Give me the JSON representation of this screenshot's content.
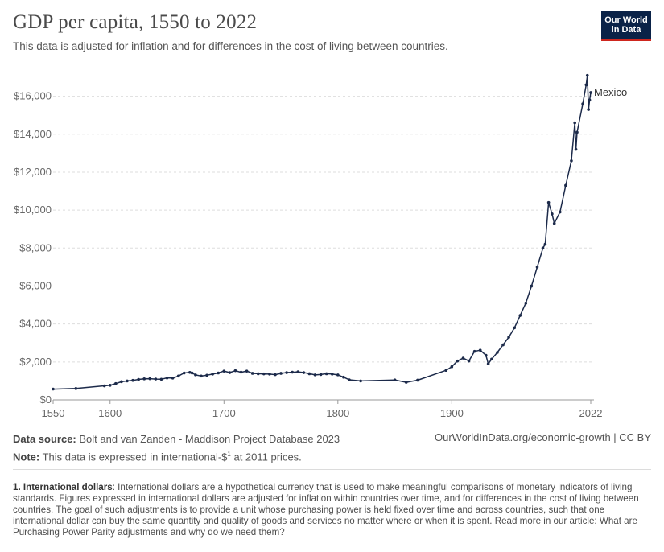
{
  "header": {
    "title": "GDP per capita, 1550 to 2022",
    "subtitle": "This data is adjusted for inflation and for differences in the cost of living between countries.",
    "logo_line1": "Our World",
    "logo_line2": "in Data"
  },
  "footer": {
    "source_label": "Data source:",
    "source_text": "Bolt and van Zanden - Maddison Project Database 2023",
    "note_label": "Note:",
    "note_text_pre": "This data is expressed in international-$",
    "note_sup": "1",
    "note_text_post": " at 2011 prices.",
    "url": "OurWorldInData.org/economic-growth | CC BY"
  },
  "footnote": {
    "label": "1. International dollars",
    "text": ": International dollars are a hypothetical currency that is used to make meaningful comparisons of monetary indicators of living standards. Figures expressed in international dollars are adjusted for inflation within countries over time, and for differences in the cost of living between countries. The goal of such adjustments is to provide a unit whose purchasing power is held fixed over time and across countries, such that one international dollar can buy the same quantity and quality of goods and services no matter where or when it is spent. Read more in our article: What are Purchasing Power Parity adjustments and why do we need them?"
  },
  "colors": {
    "line": "#1c2a4a",
    "grid": "#dddddd",
    "axis": "#666666"
  },
  "chart_data": {
    "type": "line",
    "title": "GDP per capita, 1550 to 2022",
    "xlim": [
      1550,
      2022
    ],
    "ylim": [
      0,
      17000
    ],
    "x_ticks": [
      1550,
      1600,
      1700,
      1800,
      1900,
      2022
    ],
    "x_tick_labels": [
      "1550",
      "1600",
      "1700",
      "1800",
      "1900",
      "2022"
    ],
    "y_ticks": [
      0,
      2000,
      4000,
      6000,
      8000,
      10000,
      12000,
      14000,
      16000
    ],
    "y_tick_labels": [
      "$0",
      "$2,000",
      "$4,000",
      "$6,000",
      "$8,000",
      "$10,000",
      "$12,000",
      "$14,000",
      "$16,000"
    ],
    "grid": true,
    "legend": "inline-right",
    "series": [
      {
        "name": "Mexico",
        "x": [
          1550,
          1570,
          1595,
          1600,
          1605,
          1610,
          1615,
          1620,
          1625,
          1630,
          1635,
          1640,
          1645,
          1650,
          1655,
          1660,
          1665,
          1670,
          1672,
          1675,
          1680,
          1685,
          1690,
          1695,
          1700,
          1705,
          1710,
          1715,
          1720,
          1725,
          1730,
          1735,
          1740,
          1745,
          1750,
          1755,
          1760,
          1765,
          1770,
          1775,
          1780,
          1785,
          1790,
          1795,
          1800,
          1805,
          1810,
          1820,
          1850,
          1860,
          1870,
          1895,
          1900,
          1905,
          1910,
          1915,
          1920,
          1925,
          1930,
          1932,
          1935,
          1940,
          1945,
          1950,
          1955,
          1960,
          1965,
          1970,
          1975,
          1980,
          1982,
          1985,
          1988,
          1990,
          1995,
          2000,
          2005,
          2008,
          2009,
          2010,
          2015,
          2018,
          2019,
          2020,
          2021,
          2022
        ],
        "y": [
          570,
          600,
          740,
          770,
          860,
          960,
          1000,
          1030,
          1080,
          1110,
          1120,
          1100,
          1090,
          1160,
          1150,
          1260,
          1420,
          1450,
          1420,
          1320,
          1260,
          1300,
          1360,
          1420,
          1520,
          1440,
          1540,
          1460,
          1520,
          1400,
          1380,
          1370,
          1360,
          1330,
          1400,
          1440,
          1460,
          1480,
          1440,
          1380,
          1320,
          1340,
          1380,
          1360,
          1320,
          1200,
          1060,
          1000,
          1050,
          930,
          1040,
          1560,
          1750,
          2050,
          2200,
          2050,
          2560,
          2620,
          2350,
          1900,
          2150,
          2500,
          2900,
          3300,
          3800,
          4450,
          5100,
          6000,
          7000,
          8000,
          8200,
          10400,
          9800,
          9300,
          9900,
          11300,
          12600,
          14600,
          13200,
          14100,
          15600,
          16600,
          17100,
          15300,
          15800,
          16200
        ]
      }
    ]
  }
}
